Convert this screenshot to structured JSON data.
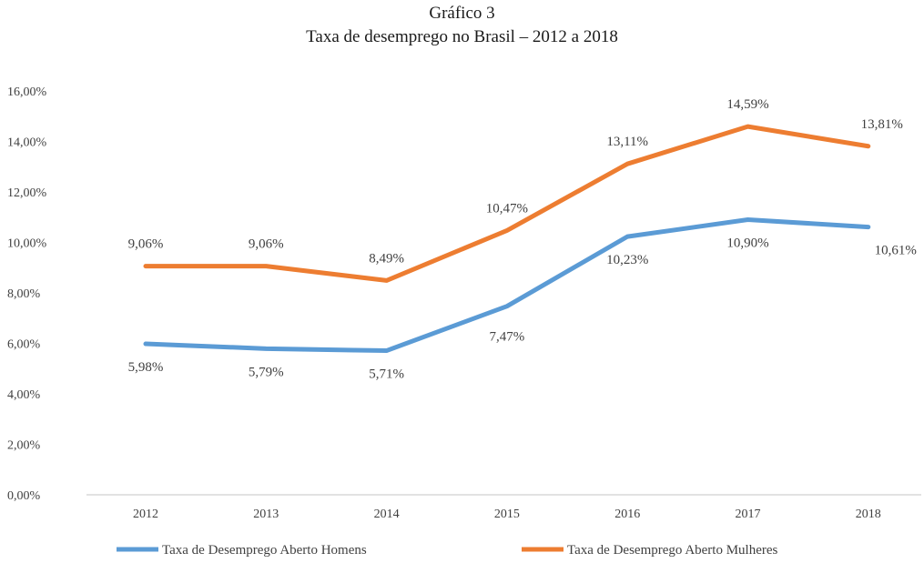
{
  "title": {
    "line1": "Gráfico 3",
    "line2": "Taxa de desemprego no Brasil – 2012 a 2018"
  },
  "chart_data": {
    "type": "line",
    "title": "Taxa de desemprego no Brasil – 2012 a 2018",
    "subtitle": "Gráfico 3",
    "xlabel": "",
    "ylabel": "",
    "categories": [
      "2012",
      "2013",
      "2014",
      "2015",
      "2016",
      "2017",
      "2018"
    ],
    "ylim": [
      0,
      16
    ],
    "yticks": [
      "0,00%",
      "2,00%",
      "4,00%",
      "6,00%",
      "8,00%",
      "10,00%",
      "12,00%",
      "14,00%",
      "16,00%"
    ],
    "grid": false,
    "legend_position": "bottom",
    "series": [
      {
        "name": "Taxa de Desemprego Aberto Homens",
        "color": "#5b9bd5",
        "values": [
          5.98,
          5.79,
          5.71,
          7.47,
          10.23,
          10.9,
          10.61
        ],
        "labels": [
          "5,98%",
          "5,79%",
          "5,71%",
          "7,47%",
          "10,23%",
          "10,90%",
          "10,61%"
        ]
      },
      {
        "name": "Taxa de Desemprego Aberto Mulheres",
        "color": "#ed7d31",
        "values": [
          9.06,
          9.06,
          8.49,
          10.47,
          13.11,
          14.59,
          13.81
        ],
        "labels": [
          "9,06%",
          "9,06%",
          "8,49%",
          "10,47%",
          "13,11%",
          "14,59%",
          "13,81%"
        ]
      }
    ]
  }
}
